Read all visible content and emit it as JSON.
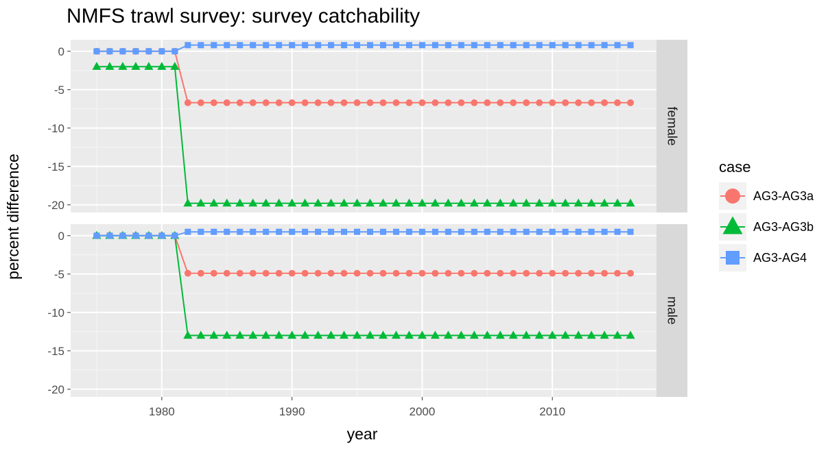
{
  "chart_data": {
    "type": "line",
    "title": "NMFS trawl survey: survey catchability",
    "xlabel": "year",
    "ylabel": "percent difference",
    "xlim": [
      1973.0,
      2018.0
    ],
    "ylim": [
      -21,
      1.5
    ],
    "x_ticks": [
      1980,
      1990,
      2000,
      2010
    ],
    "y_ticks": [
      0,
      -5,
      -10,
      -15,
      -20
    ],
    "grid": true,
    "legend_placement": "right",
    "legend_title": "case",
    "x": [
      1975,
      1976,
      1977,
      1978,
      1979,
      1980,
      1981,
      1982,
      1983,
      1984,
      1985,
      1986,
      1987,
      1988,
      1989,
      1990,
      1991,
      1992,
      1993,
      1994,
      1995,
      1996,
      1997,
      1998,
      1999,
      2000,
      2001,
      2002,
      2003,
      2004,
      2005,
      2006,
      2007,
      2008,
      2009,
      2010,
      2011,
      2012,
      2013,
      2014,
      2015,
      2016
    ],
    "panels": [
      {
        "label": "female",
        "series": [
          {
            "name": "AG3-AG3a",
            "color": "#F8766D",
            "marker": "circle",
            "before": 0,
            "after": -6.7
          },
          {
            "name": "AG3-AG3b",
            "color": "#00BA38",
            "marker": "triangle",
            "before": -2.0,
            "after": -19.8
          },
          {
            "name": "AG3-AG4",
            "color": "#619CFF",
            "marker": "square",
            "before": 0,
            "after": 0.8
          }
        ]
      },
      {
        "label": "male",
        "series": [
          {
            "name": "AG3-AG3a",
            "color": "#F8766D",
            "marker": "circle",
            "before": 0,
            "after": -4.9
          },
          {
            "name": "AG3-AG3b",
            "color": "#00BA38",
            "marker": "triangle",
            "before": 0,
            "after": -13.0
          },
          {
            "name": "AG3-AG4",
            "color": "#619CFF",
            "marker": "square",
            "before": 0,
            "after": 0.5
          }
        ]
      }
    ],
    "change_year": 1982
  }
}
